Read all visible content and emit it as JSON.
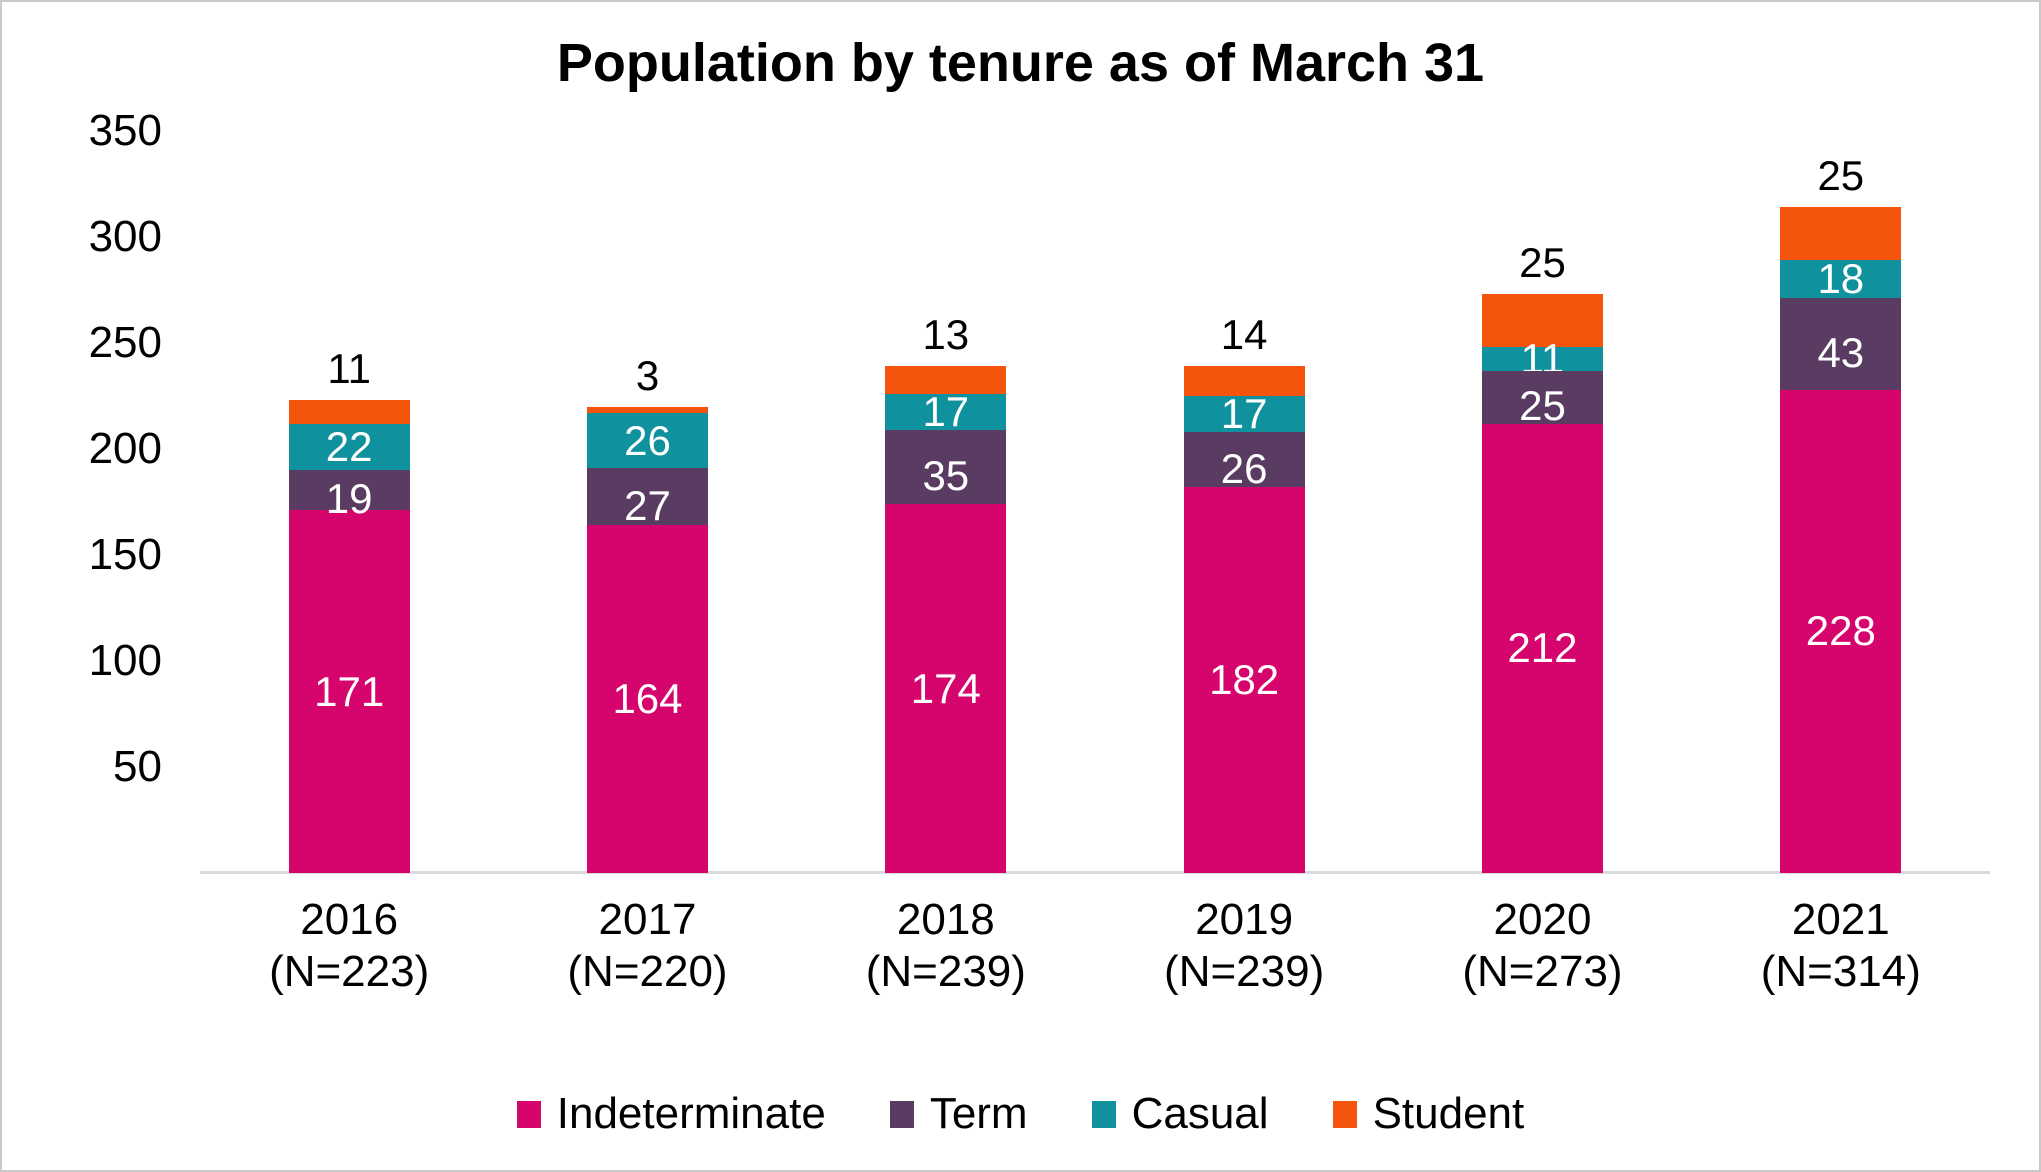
{
  "canvas": {
    "background": "#ffffff",
    "border_color": "#c9c9c9",
    "axis_line_color": "#dadada"
  },
  "chart_data": {
    "type": "bar",
    "stacked": true,
    "title": "Population by tenure as of March 31",
    "categories": [
      "2016",
      "2017",
      "2018",
      "2019",
      "2020",
      "2021"
    ],
    "category_sublabels": [
      "(N=223)",
      "(N=220)",
      "(N=239)",
      "(N=239)",
      "(N=273)",
      "(N=314)"
    ],
    "totals": [
      223,
      220,
      239,
      239,
      273,
      314
    ],
    "series": [
      {
        "name": "Indeterminate",
        "color": "#D6056E",
        "label_color": "#ffffff",
        "label_position": "inside",
        "values": [
          171,
          164,
          174,
          182,
          212,
          228
        ]
      },
      {
        "name": "Term",
        "color": "#5A3C62",
        "label_color": "#ffffff",
        "label_position": "inside",
        "values": [
          19,
          27,
          35,
          26,
          25,
          43
        ]
      },
      {
        "name": "Casual",
        "color": "#10929E",
        "label_color": "#ffffff",
        "label_position": "inside",
        "values": [
          22,
          26,
          17,
          17,
          11,
          18
        ]
      },
      {
        "name": "Student",
        "color": "#F4540C",
        "label_color": "#000000",
        "label_position": "outside-end",
        "values": [
          11,
          3,
          13,
          14,
          25,
          25
        ]
      }
    ],
    "y_axis": {
      "min": 0,
      "max": 350,
      "tick_step": 50,
      "ticks": [
        50,
        100,
        150,
        200,
        250,
        300,
        350
      ]
    },
    "legend": {
      "position": "bottom",
      "entries": [
        "Indeterminate",
        "Term",
        "Casual",
        "Student"
      ]
    },
    "grid": false
  }
}
